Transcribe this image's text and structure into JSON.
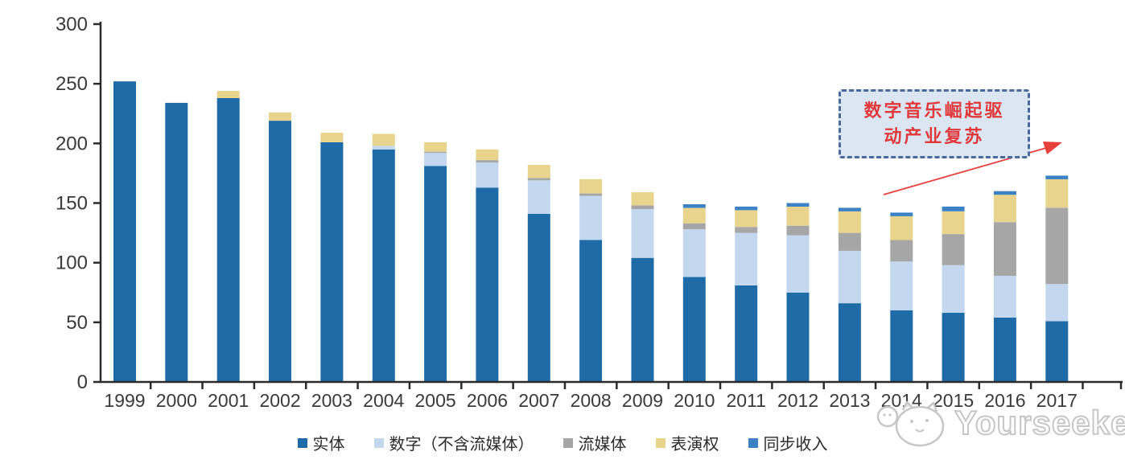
{
  "chart_data": {
    "type": "bar",
    "stacked": true,
    "title": "",
    "categories": [
      "1999",
      "2000",
      "2001",
      "2002",
      "2003",
      "2004",
      "2005",
      "2006",
      "2007",
      "2008",
      "2009",
      "2010",
      "2011",
      "2012",
      "2013",
      "2014",
      "2015",
      "2016",
      "2017"
    ],
    "series": [
      {
        "name": "实体",
        "color": "#1F6BA8",
        "values": [
          252,
          234,
          238,
          219,
          201,
          195,
          181,
          163,
          141,
          119,
          104,
          88,
          81,
          75,
          66,
          60,
          58,
          54,
          51
        ]
      },
      {
        "name": "数字（不含流媒体）",
        "color": "#C3D7EE",
        "values": [
          0,
          0,
          0,
          0,
          0,
          3,
          11,
          21,
          28,
          37,
          41,
          40,
          44,
          48,
          44,
          41,
          40,
          35,
          31
        ]
      },
      {
        "name": "流媒体",
        "color": "#A6A6A6",
        "values": [
          0,
          0,
          0,
          0,
          0,
          0,
          1,
          2,
          2,
          2,
          3,
          5,
          5,
          8,
          15,
          18,
          26,
          45,
          64
        ]
      },
      {
        "name": "表演权",
        "color": "#E9D48E",
        "values": [
          0,
          0,
          6,
          7,
          8,
          10,
          8,
          9,
          11,
          12,
          11,
          13,
          14,
          16,
          18,
          20,
          19,
          23,
          24
        ]
      },
      {
        "name": "同步收入",
        "color": "#3C82C4",
        "values": [
          0,
          0,
          0,
          0,
          0,
          0,
          0,
          0,
          0,
          0,
          0,
          3,
          3,
          3,
          3,
          3,
          4,
          3,
          3
        ]
      }
    ],
    "ylim": [
      0,
      300
    ],
    "yticks": [
      0,
      50,
      100,
      150,
      200,
      250,
      300
    ],
    "grid": false,
    "legend_position": "bottom",
    "axis_color": "#2b2b2b",
    "tick_label_color": "#3a3a3a",
    "annotation": {
      "line1": "数字音乐崛起驱",
      "line2": "动产业复苏",
      "full_text": "数字音乐崛起驱动产业复苏",
      "text_color": "#E0393C",
      "box_fill": "#DCE6F2",
      "box_border": "#4A6A9D",
      "arrow_color": "#E8403D"
    }
  },
  "watermark": {
    "brand": "Yourseeker",
    "logo": "cat-mascot-icon",
    "color": "#c6c6c6"
  }
}
